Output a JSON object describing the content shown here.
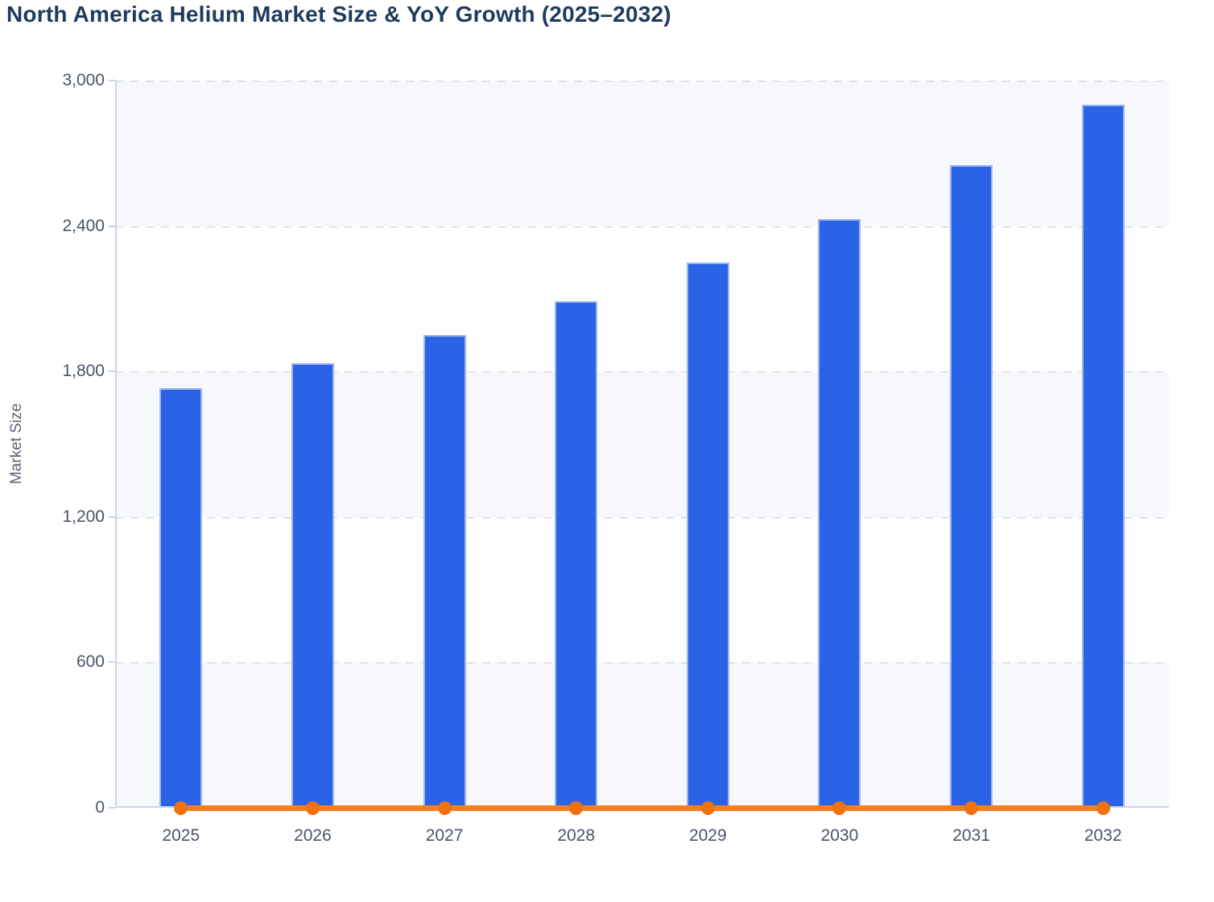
{
  "page_title": "North America Helium Market Size & YoY Growth (2025–2032)",
  "chart_data": {
    "type": "bar",
    "title": "North America Helium Market Size & YoY Growth (2025–2032)",
    "ylabel": "Market Size",
    "xlabel": "",
    "categories": [
      "2025",
      "2026",
      "2027",
      "2028",
      "2029",
      "2030",
      "2031",
      "2032"
    ],
    "series": [
      {
        "name": "Market Size",
        "type": "bar",
        "color": "#2b63e6",
        "values": [
          1730,
          1835,
          1950,
          2090,
          2250,
          2430,
          2650,
          2900
        ]
      },
      {
        "name": "YoY Growth",
        "type": "line",
        "color": "#f5801d",
        "marker_color": "#f0720e",
        "values": [
          0,
          0,
          0,
          0,
          0,
          0,
          0,
          0
        ]
      }
    ],
    "ylim": [
      0,
      3000
    ],
    "yticks": [
      0,
      600,
      1200,
      1800,
      2400,
      3000
    ],
    "ytick_labels": [
      "0",
      "600",
      "1,200",
      "1,800",
      "2,400",
      "3,000"
    ],
    "grid": "dashed-horizontal",
    "legend": "none",
    "style": {
      "title_color": "#1e3a5f",
      "tick_label_color": "#4a5565",
      "axis_title_color": "#5a6372",
      "band_colors": [
        "#f7f8fb",
        "#ffffff"
      ],
      "grid_color": "#e0e3e9",
      "axis_line_color": "#ccd4e8",
      "bar_border_color": "#b0c4f2"
    }
  }
}
